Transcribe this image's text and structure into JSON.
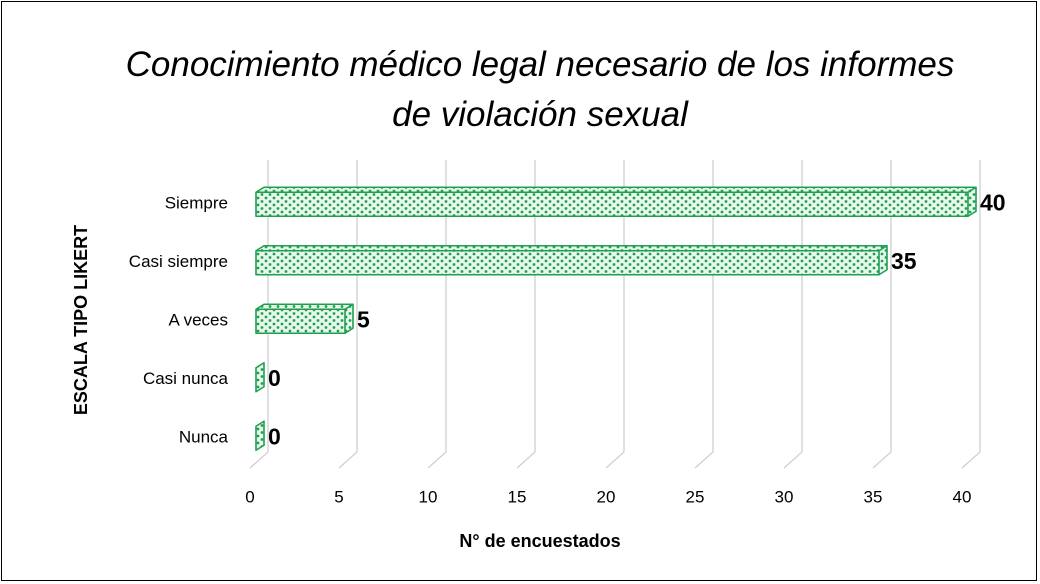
{
  "chart_data": {
    "type": "bar",
    "orientation": "horizontal",
    "title": "Conocimiento médico legal necesario de los informes de violación sexual",
    "xlabel": "N° de encuestados",
    "ylabel": "ESCALA TIPO LIKERT",
    "categories": [
      "Siempre",
      "Casi siempre",
      "A veces",
      "Casi nunca",
      "Nunca"
    ],
    "values": [
      40,
      35,
      5,
      0,
      0
    ],
    "color": "#1fa050",
    "xlim": [
      0,
      40
    ],
    "xticks": [
      0,
      5,
      10,
      15,
      20,
      25,
      30,
      35,
      40
    ],
    "grid": true
  }
}
